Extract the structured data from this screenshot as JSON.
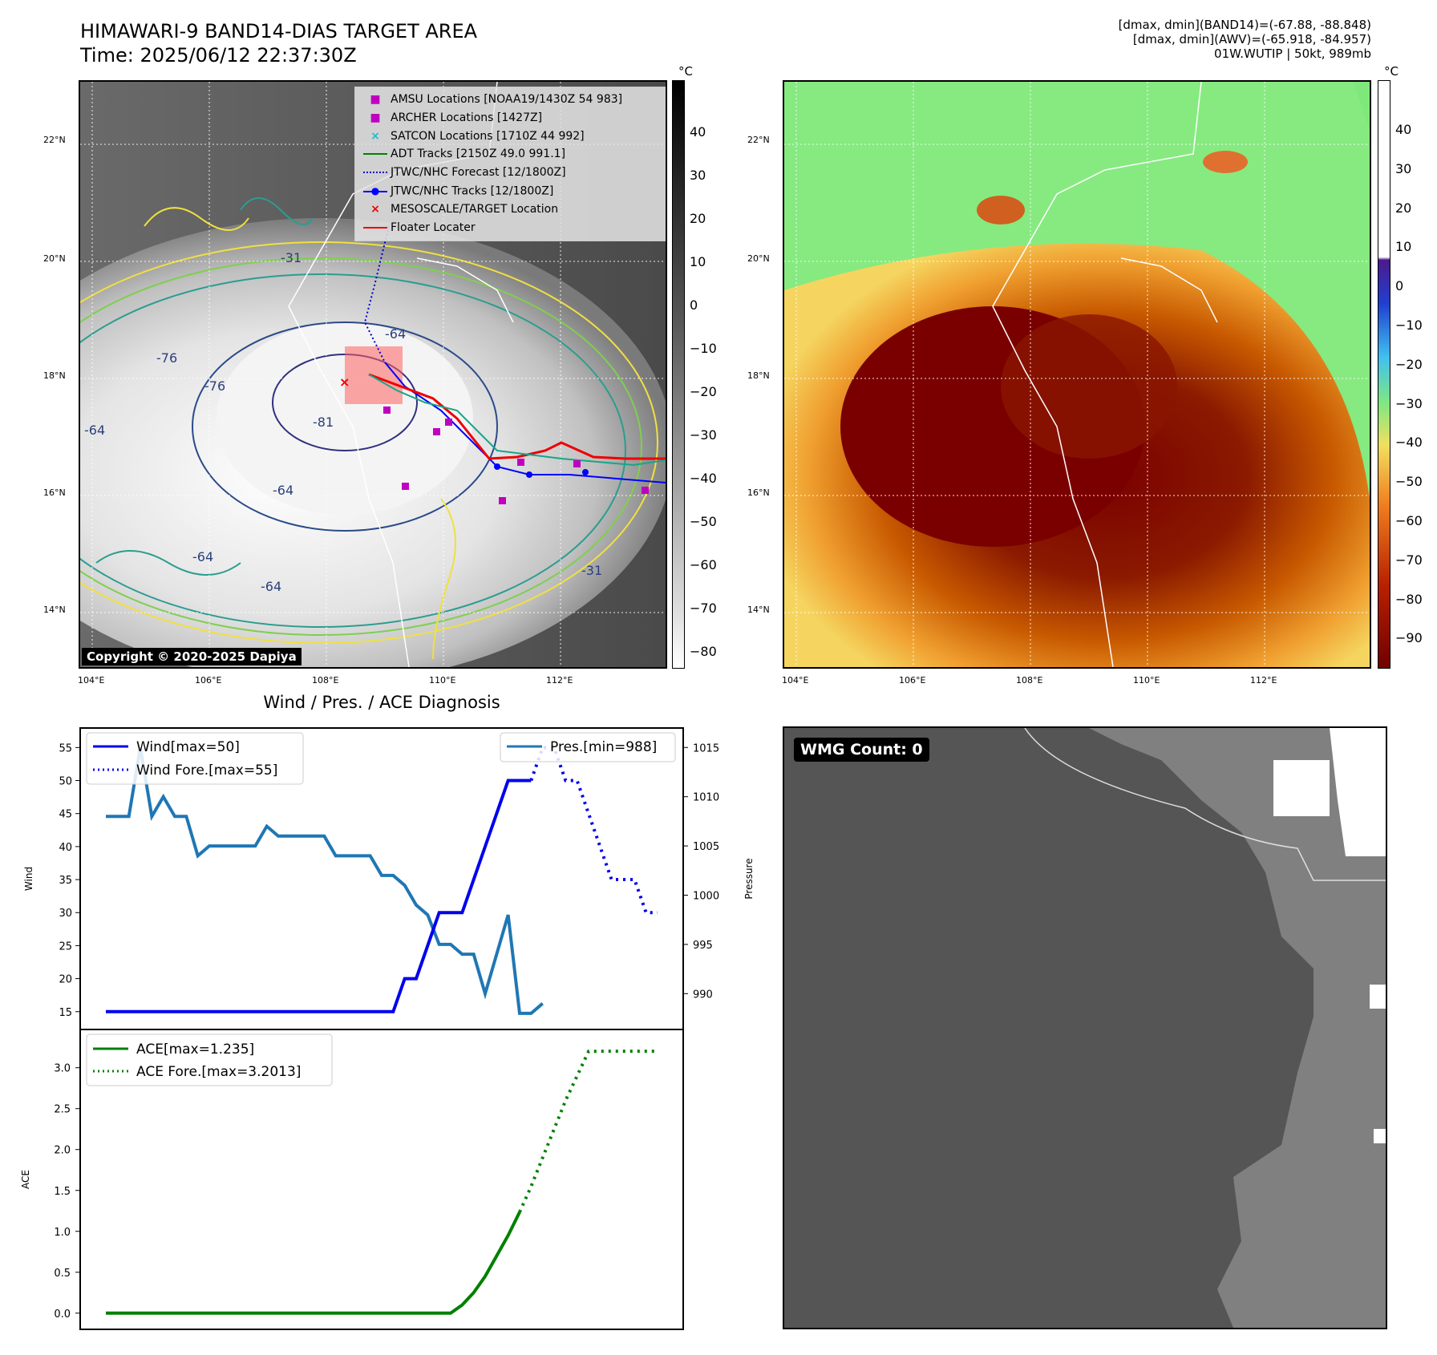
{
  "header": {
    "title_line1": "HIMAWARI-9 BAND14-DIAS TARGET AREA",
    "title_line2": "Time: 2025/06/12 22:37:30Z",
    "info_line1": "[dmax, dmin](BAND14)=(-67.88, -88.848)",
    "info_line2": "[dmax, dmin](AWV)=(-65.918, -84.957)",
    "info_line3": "01W.WUTIP | 50kt, 989mb"
  },
  "map_left": {
    "unit": "°C",
    "colorbar_ticks": [
      "40",
      "30",
      "20",
      "10",
      "0",
      "−10",
      "−20",
      "−30",
      "−40",
      "−50",
      "−60",
      "−70",
      "−80"
    ],
    "lat_labels": [
      "22°N",
      "20°N",
      "18°N",
      "16°N",
      "14°N"
    ],
    "lon_labels": [
      "104°E",
      "106°E",
      "108°E",
      "110°E",
      "112°E"
    ],
    "copyright": "Copyright © 2020-2025 Dapiya",
    "contour_labels": [
      "-64",
      "-76",
      "-76",
      "-81",
      "-64",
      "-64",
      "-64",
      "-64",
      "-31",
      "-31"
    ],
    "legend": [
      {
        "label": "AMSU Locations [NOAA19/1430Z 54 983]",
        "color": "#c000c0",
        "marker": "square"
      },
      {
        "label": "ARCHER Locations [1427Z]",
        "color": "#c000c0",
        "marker": "square"
      },
      {
        "label": "SATCON Locations [1710Z 44 992]",
        "color": "#17becf",
        "marker": "x"
      },
      {
        "label": "ADT Tracks [2150Z 49.0 991.1]",
        "color": "#008000",
        "marker": "line"
      },
      {
        "label": "JTWC/NHC Forecast [12/1800Z]",
        "color": "#0000cc",
        "marker": "dotted"
      },
      {
        "label": "JTWC/NHC Tracks [12/1800Z]",
        "color": "#0000ff",
        "marker": "dotline"
      },
      {
        "label": "MESOSCALE/TARGET Location",
        "color": "#ee0000",
        "marker": "x"
      },
      {
        "label": "Floater Locater",
        "color": "#ee0000",
        "marker": "line"
      }
    ]
  },
  "map_right": {
    "unit": "°C",
    "colorbar_ticks": [
      "40",
      "30",
      "20",
      "10",
      "0",
      "−10",
      "−20",
      "−30",
      "−40",
      "−50",
      "−60",
      "−70",
      "−80",
      "−90"
    ],
    "lat_labels": [
      "22°N",
      "20°N",
      "18°N",
      "16°N",
      "14°N"
    ],
    "lon_labels": [
      "104°E",
      "106°E",
      "108°E",
      "110°E",
      "112°E"
    ]
  },
  "diagnosis": {
    "title": "Wind / Pres. / ACE Diagnosis",
    "wind_axis_label": "Wind",
    "pressure_axis_label": "Pressure",
    "ace_axis_label": "ACE",
    "wmg_label": "WMG Count: 0"
  },
  "chart_data": [
    {
      "type": "line",
      "title": "Wind / Pres. / ACE Diagnosis",
      "ylabel": "Wind",
      "y2label": "Pressure",
      "ylim": [
        14,
        56.5
      ],
      "y2lim": [
        987.5,
        1016
      ],
      "yticks": [
        15,
        20,
        25,
        30,
        35,
        40,
        45,
        50,
        55
      ],
      "y2ticks": [
        990,
        995,
        1000,
        1005,
        1010,
        1015
      ],
      "x": [
        0,
        1,
        2,
        3,
        4,
        5,
        6,
        7,
        8,
        9,
        10,
        11,
        12,
        13,
        14,
        15,
        16,
        17,
        18,
        19,
        20,
        21,
        22,
        23,
        24,
        25,
        26,
        27,
        28,
        29,
        30,
        31,
        32,
        33,
        34,
        35,
        36,
        37,
        38,
        39,
        40,
        41,
        42,
        43,
        44,
        45,
        46,
        47,
        48
      ],
      "series": [
        {
          "name": "Wind[max=50]",
          "axis": "left",
          "style": "solid",
          "color": "#0000ee",
          "values": [
            15,
            15,
            15,
            15,
            15,
            15,
            15,
            15,
            15,
            15,
            15,
            15,
            15,
            15,
            15,
            15,
            15,
            15,
            15,
            15,
            15,
            15,
            15,
            15,
            15,
            15,
            20,
            20,
            25,
            30,
            30,
            30,
            35,
            40,
            45,
            50,
            50,
            50,
            null,
            null,
            null,
            null,
            null,
            null,
            null,
            null,
            null,
            null,
            null
          ]
        },
        {
          "name": "Wind Fore.[max=55]",
          "axis": "left",
          "style": "dotted",
          "color": "#0000ee",
          "values": [
            null,
            null,
            null,
            null,
            null,
            null,
            null,
            null,
            null,
            null,
            null,
            null,
            null,
            null,
            null,
            null,
            null,
            null,
            null,
            null,
            null,
            null,
            null,
            null,
            null,
            null,
            null,
            null,
            null,
            null,
            null,
            null,
            null,
            null,
            null,
            null,
            null,
            50,
            55,
            55,
            50,
            50,
            45,
            40,
            35,
            35,
            35,
            30,
            30
          ]
        },
        {
          "name": "Pres.[min=988]",
          "axis": "right",
          "style": "solid",
          "color": "#1f77b4",
          "values": [
            1008,
            1008,
            1008,
            1015,
            1008,
            1010,
            1008,
            1008,
            1004,
            1005,
            1005,
            1005,
            1005,
            1005,
            1007,
            1006,
            1006,
            1006,
            1006,
            1006,
            1004,
            1004,
            1004,
            1004,
            1002,
            1002,
            1001,
            999,
            998,
            995,
            995,
            994,
            994,
            990,
            994,
            998,
            988,
            988,
            989,
            null,
            null,
            null,
            null,
            null,
            null,
            null,
            null,
            null,
            null
          ]
        }
      ]
    },
    {
      "type": "line",
      "ylabel": "ACE",
      "ylim": [
        -0.1,
        3.35
      ],
      "yticks": [
        0.0,
        0.5,
        1.0,
        1.5,
        2.0,
        2.5,
        3.0
      ],
      "x": [
        0,
        1,
        2,
        3,
        4,
        5,
        6,
        7,
        8,
        9,
        10,
        11,
        12,
        13,
        14,
        15,
        16,
        17,
        18,
        19,
        20,
        21,
        22,
        23,
        24,
        25,
        26,
        27,
        28,
        29,
        30,
        31,
        32,
        33,
        34,
        35,
        36,
        37,
        38,
        39,
        40,
        41,
        42,
        43,
        44,
        45,
        46,
        47,
        48
      ],
      "series": [
        {
          "name": "ACE[max=1.235]",
          "style": "solid",
          "color": "#008000",
          "values": [
            0,
            0,
            0,
            0,
            0,
            0,
            0,
            0,
            0,
            0,
            0,
            0,
            0,
            0,
            0,
            0,
            0,
            0,
            0,
            0,
            0,
            0,
            0,
            0,
            0,
            0,
            0,
            0,
            0,
            0,
            0,
            0.1,
            0.25,
            0.45,
            0.7,
            0.95,
            1.235,
            null,
            null,
            null,
            null,
            null,
            null,
            null,
            null,
            null,
            null,
            null,
            null
          ]
        },
        {
          "name": "ACE Fore.[max=3.2013]",
          "style": "dotted",
          "color": "#008000",
          "values": [
            null,
            null,
            null,
            null,
            null,
            null,
            null,
            null,
            null,
            null,
            null,
            null,
            null,
            null,
            null,
            null,
            null,
            null,
            null,
            null,
            null,
            null,
            null,
            null,
            null,
            null,
            null,
            null,
            null,
            null,
            null,
            null,
            null,
            null,
            null,
            null,
            1.235,
            1.55,
            1.9,
            2.25,
            2.6,
            2.9,
            3.2,
            3.2013,
            3.2013,
            3.2013,
            3.2013,
            3.2013,
            3.2013
          ]
        }
      ]
    }
  ]
}
